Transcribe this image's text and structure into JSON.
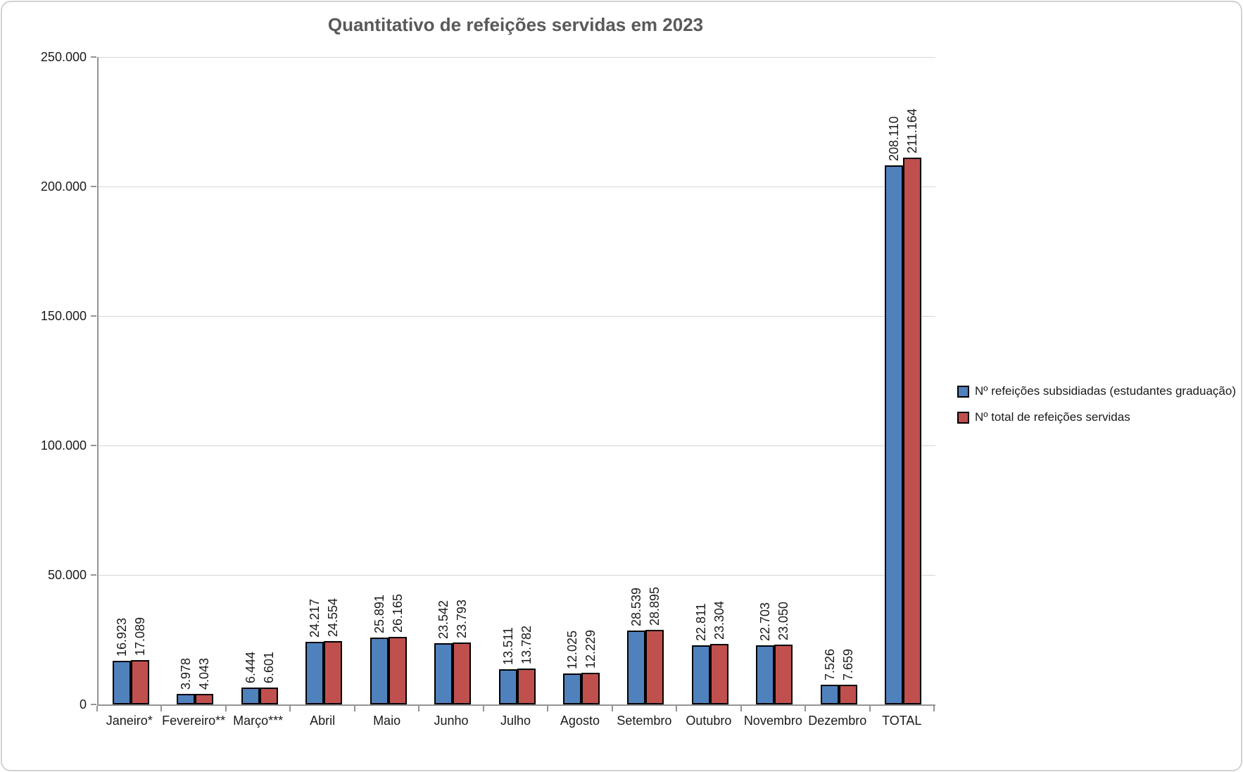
{
  "chart_data": {
    "type": "bar",
    "title": "Quantitativo de refeições servidas em 2023",
    "title_color": "#595959",
    "categories": [
      "Janeiro*",
      "Fevereiro**",
      "Março***",
      "Abril",
      "Maio",
      "Junho",
      "Julho",
      "Agosto",
      "Setembro",
      "Outubro",
      "Novembro",
      "Dezembro",
      "TOTAL"
    ],
    "series": [
      {
        "name": "Nº refeições subsidiadas (estudantes graduação)",
        "color": "#4F81BD",
        "values": [
          16923,
          3978,
          6444,
          24217,
          25891,
          23542,
          13511,
          12025,
          28539,
          22811,
          22703,
          7526,
          208110
        ],
        "data_labels": [
          "16.923",
          "3.978",
          "6.444",
          "24.217",
          "25.891",
          "23.542",
          "13.511",
          "12.025",
          "28.539",
          "22.811",
          "22.703",
          "7.526",
          "208.110"
        ]
      },
      {
        "name": "Nº total de refeições servidas",
        "color": "#C0504D",
        "values": [
          17089,
          4043,
          6601,
          24554,
          26165,
          23793,
          13782,
          12229,
          28895,
          23304,
          23050,
          7659,
          211164
        ],
        "data_labels": [
          "17.089",
          "4.043",
          "6.601",
          "24.554",
          "26.165",
          "23.793",
          "13.782",
          "12.229",
          "28.895",
          "23.304",
          "23.050",
          "7.659",
          "211.164"
        ]
      }
    ],
    "y_axis": {
      "min": 0,
      "max": 250000,
      "step": 50000,
      "tick_labels": [
        "0",
        "50.000",
        "100.000",
        "150.000",
        "200.000",
        "250.000"
      ]
    },
    "bar_border_color": "#000000",
    "gridline_color": "#d6d6d6",
    "axis_color": "#949494",
    "legend_position": "right",
    "grid": true
  }
}
